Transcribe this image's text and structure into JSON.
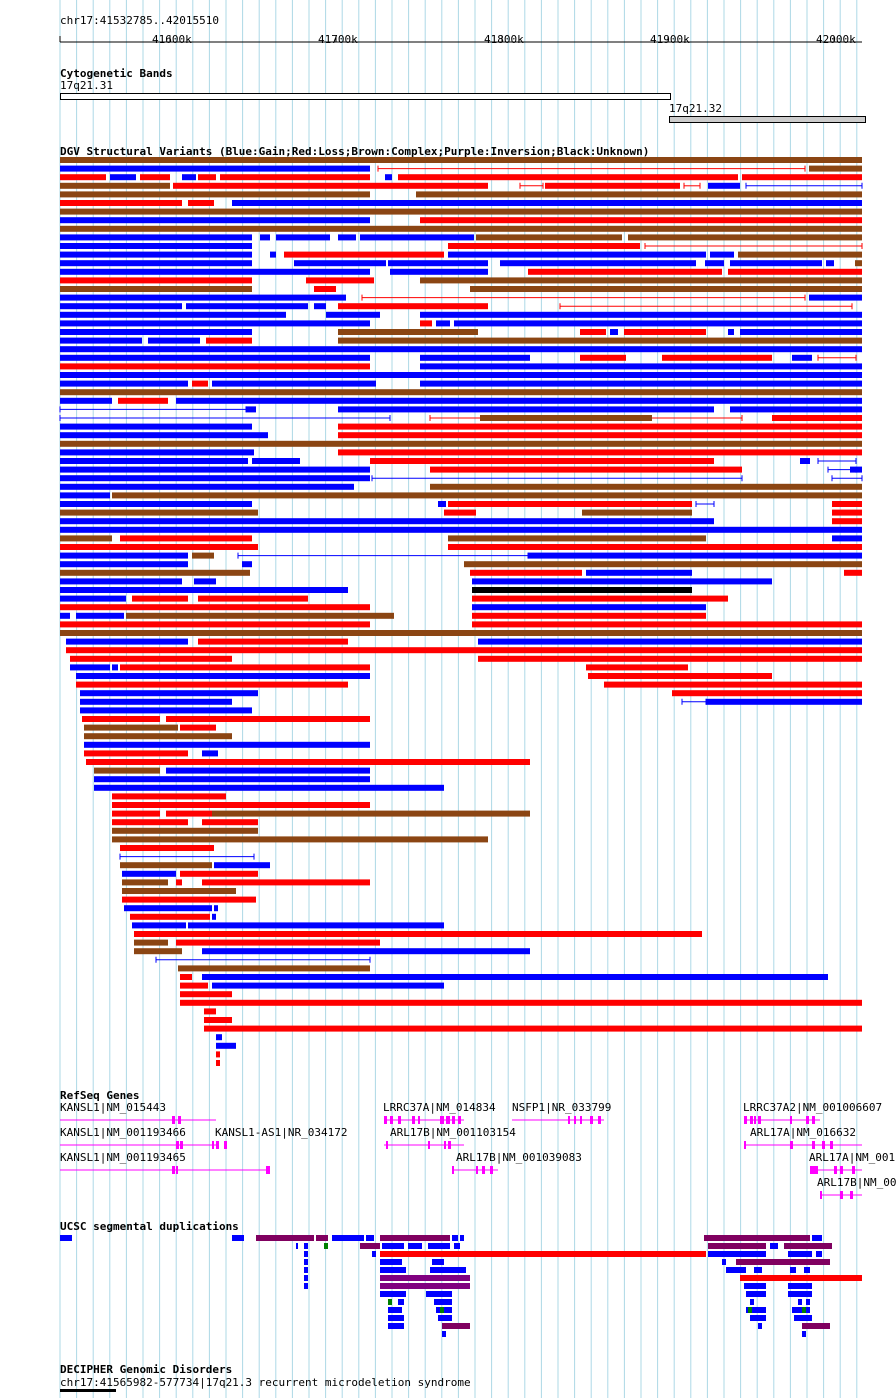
{
  "location": "chr17:41532785..42015510",
  "ruler": {
    "ticks": [
      "41600k",
      "41700k",
      "41800k",
      "41900k",
      "42000k"
    ]
  },
  "cytobands": {
    "title": "Cytogenetic Bands",
    "band1": "17q21.31",
    "band2": "17q21.32"
  },
  "dgv": {
    "title": "DGV Structural Variants (Blue:Gain;Red:Loss;Brown:Complex;Purple:Inversion;Black:Unknown)"
  },
  "refseq": {
    "title": "RefSeq Genes",
    "labels": [
      "KANSL1|NM_015443",
      "KANSL1|NM_001193466",
      "KANSL1-AS1|NR_034172",
      "KANSL1|NM_001193465",
      "LRRC37A|NM_014834",
      "NSFP1|NR_033799",
      "ARL17B|NM_001103154",
      "ARL17B|NM_001039083",
      "LRRC37A2|NM_001006607",
      "ARL17A|NM_016632",
      "ARL17A|NM_001",
      "ARL17B|NM_00"
    ]
  },
  "segdup": {
    "title": "UCSC segmental duplications"
  },
  "decipher": {
    "title": "DECIPHER Genomic Disorders",
    "entry": "chr17:41565982-577734|17q21.3 recurrent microdeletion syndrome"
  },
  "colors": {
    "gain": "#0000ff",
    "loss": "#ff0000",
    "complex": "#8b4513",
    "unknown": "#000000",
    "gene": "#ff00ff",
    "grid": "#add8e6"
  }
}
